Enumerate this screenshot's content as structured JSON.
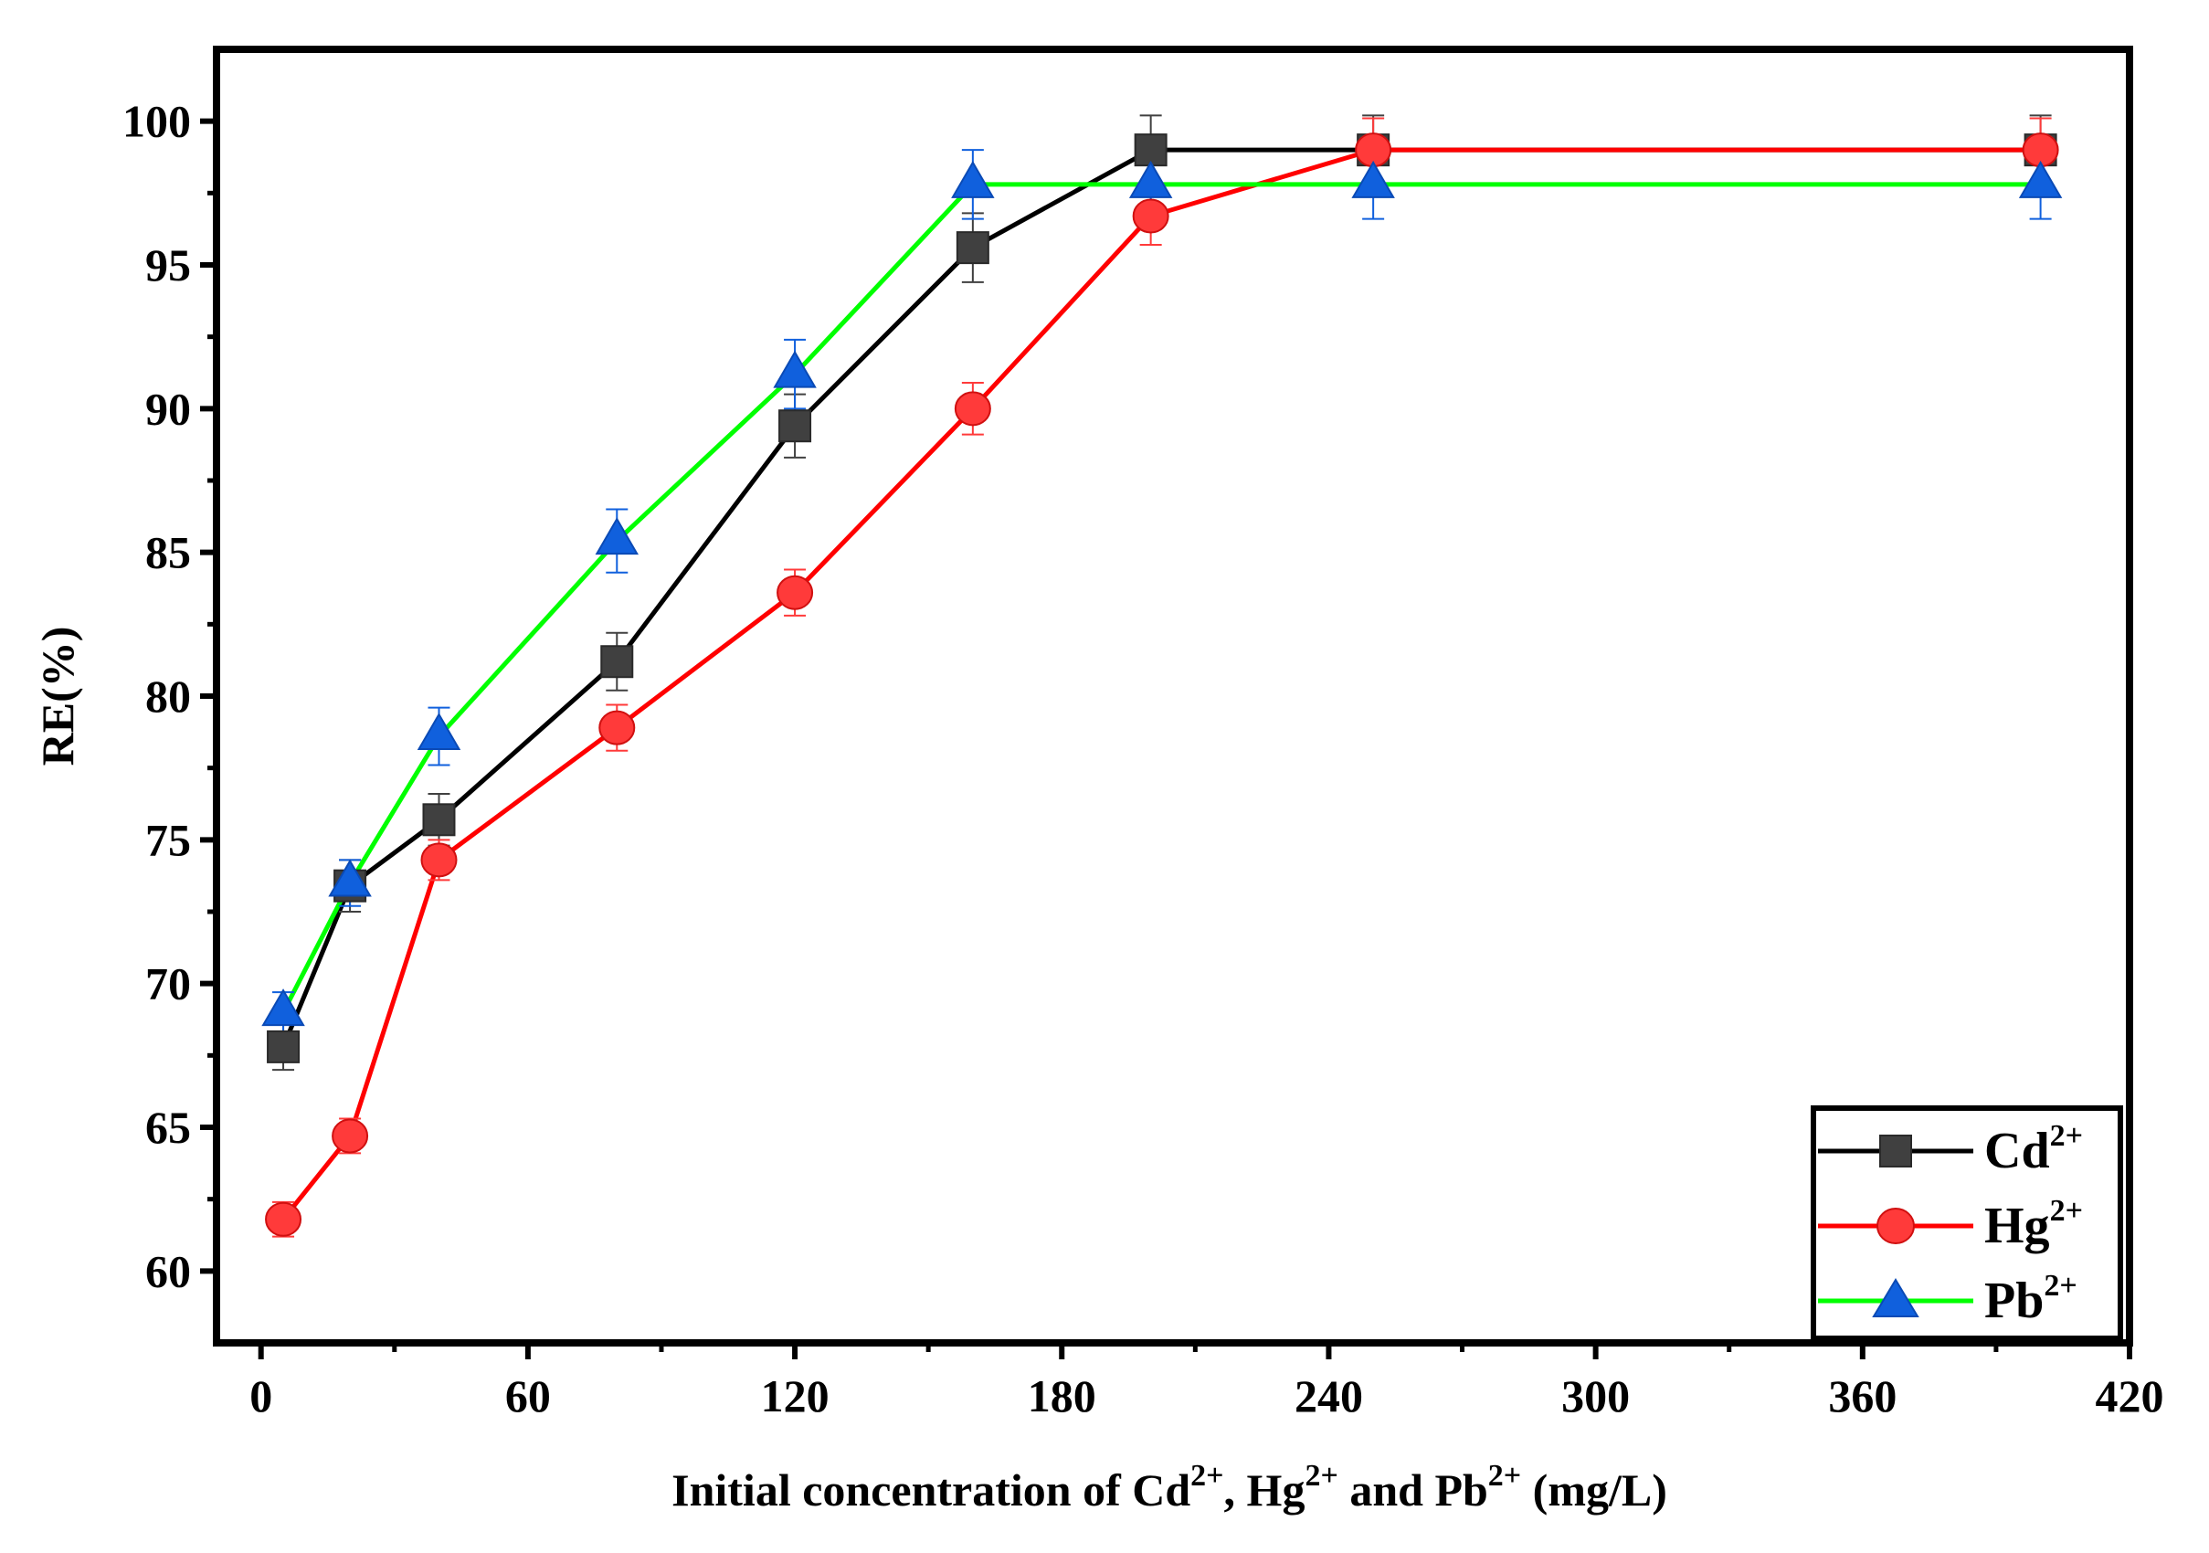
{
  "chart_data": {
    "type": "line",
    "title": "",
    "xlabel": {
      "prefix": "Initial concentration of Cd",
      "sup1": "2+",
      "mid1": ", Hg",
      "sup2": "2+",
      "mid2": " and Pb",
      "sup3": "2+",
      "suffix": " (mg/L)"
    },
    "ylabel": "RE(%)",
    "xlim": [
      -10,
      420
    ],
    "ylim": [
      57.5,
      102.5
    ],
    "xticks": [
      0,
      60,
      120,
      180,
      240,
      300,
      360,
      420
    ],
    "yticks": [
      60,
      65,
      70,
      75,
      80,
      85,
      90,
      95,
      100
    ],
    "legend_position": "bottom-right",
    "series": [
      {
        "name": "Cd",
        "sup": "2+",
        "color": "#000000",
        "marker_color": "#404040",
        "marker": "square",
        "x": [
          5,
          20,
          40,
          80,
          120,
          160,
          200,
          250,
          400
        ],
        "y": [
          67.8,
          73.4,
          75.7,
          81.2,
          89.4,
          95.6,
          99.0,
          99.0,
          99.0
        ],
        "err": [
          0.8,
          0.9,
          0.9,
          1.0,
          1.1,
          1.2,
          1.2,
          1.2,
          1.2
        ]
      },
      {
        "name": "Hg",
        "sup": "2+",
        "color": "#ff0000",
        "marker_color": "#ff3a3a",
        "marker": "circle",
        "x": [
          5,
          20,
          40,
          80,
          120,
          160,
          200,
          250,
          400
        ],
        "y": [
          61.8,
          64.7,
          74.3,
          78.9,
          83.6,
          90.0,
          96.7,
          99.0,
          99.0
        ],
        "err": [
          0.6,
          0.6,
          0.7,
          0.8,
          0.8,
          0.9,
          1.0,
          1.1,
          1.1
        ]
      },
      {
        "name": "Pb",
        "sup": "2+",
        "color": "#00ff00",
        "marker_color": "#1060dd",
        "marker": "triangle",
        "x": [
          5,
          20,
          40,
          80,
          120,
          160,
          200,
          250,
          400
        ],
        "y": [
          69.0,
          73.5,
          78.6,
          85.4,
          91.2,
          97.8,
          97.8,
          97.8,
          97.8
        ],
        "err": [
          0.7,
          0.8,
          1.0,
          1.1,
          1.2,
          1.2,
          1.2,
          1.2,
          1.2
        ]
      }
    ]
  }
}
